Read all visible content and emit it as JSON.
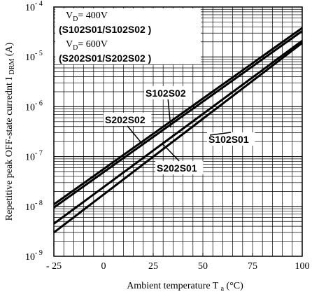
{
  "chart_data": {
    "type": "line",
    "xlabel": "Ambient temperature T",
    "xlabel_sub": "a",
    "xlabel_unit": "(°C)",
    "ylabel": "Repetitive peak OFF-state currednt I",
    "ylabel_sub": "DRM",
    "ylabel_unit": "(A)",
    "x_ticks": [
      {
        "value": -25,
        "label": "- 25"
      },
      {
        "value": 0,
        "label": "0"
      },
      {
        "value": 25,
        "label": "25"
      },
      {
        "value": 50,
        "label": "50"
      },
      {
        "value": 75,
        "label": "75"
      },
      {
        "value": 100,
        "label": "100"
      }
    ],
    "xlim": [
      -25,
      100
    ],
    "ylim": [
      1e-09,
      0.0001
    ],
    "yscale": "log",
    "y_ticks": [
      {
        "value": 1e-09,
        "base": "10",
        "exp": "- 9"
      },
      {
        "value": 1e-08,
        "base": "10",
        "exp": "- 8"
      },
      {
        "value": 1e-07,
        "base": "10",
        "exp": "- 7"
      },
      {
        "value": 1e-06,
        "base": "10",
        "exp": "- 6"
      },
      {
        "value": 1e-05,
        "base": "10",
        "exp": "- 5"
      },
      {
        "value": 0.0001,
        "base": "10",
        "exp": "- 4"
      }
    ],
    "grid": true,
    "legend_box": {
      "lines": [
        {
          "prefix": "V",
          "sub": "D",
          "suffix": "= 400V"
        },
        {
          "text": "(S102S01/S102S02 )"
        },
        {
          "prefix": "V",
          "sub": "D",
          "suffix": "= 600V"
        },
        {
          "text": "(S202S01/S202S02 )"
        }
      ]
    },
    "series": [
      {
        "name": "S102S02",
        "x": [
          -25,
          100
        ],
        "y": [
          1.1e-08,
          3.8e-05
        ]
      },
      {
        "name": "S202S02",
        "x": [
          -25,
          100
        ],
        "y": [
          9.5e-09,
          3.3e-05
        ]
      },
      {
        "name": "S102S01",
        "x": [
          -25,
          100
        ],
        "y": [
          4.5e-09,
          2.1e-05
        ]
      },
      {
        "name": "S202S01",
        "x": [
          -25,
          100
        ],
        "y": [
          3e-09,
          1.9e-05
        ]
      }
    ],
    "annotations": [
      {
        "text": "S102S02",
        "series": "S102S02"
      },
      {
        "text": "S202S02",
        "series": "S202S02"
      },
      {
        "text": "S102S01",
        "series": "S102S01"
      },
      {
        "text": "S202S01",
        "series": "S202S01"
      }
    ]
  }
}
